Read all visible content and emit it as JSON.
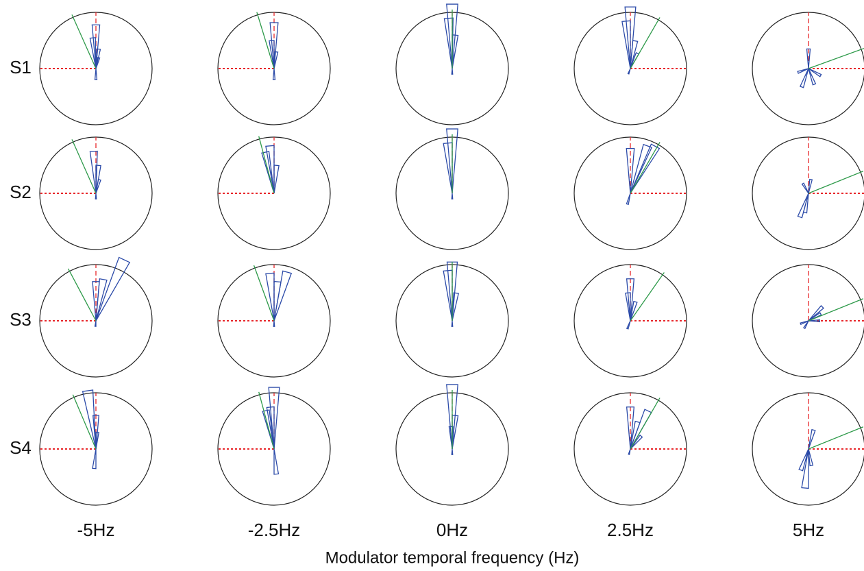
{
  "chart_data": {
    "type": "polar-rose-grid",
    "x_label": "Modulator temporal frequency (Hz)",
    "rows": [
      "S1",
      "S2",
      "S3",
      "S4"
    ],
    "columns": [
      "-5Hz",
      "-2.5Hz",
      "0Hz",
      "2.5Hz",
      "5Hz"
    ],
    "reference_side": [
      "left",
      "left",
      "none",
      "right",
      "right"
    ],
    "petal_color": "#2b4aa8",
    "mean_color": "#2e9a4a",
    "reference_color": "#e8262a",
    "panels": [
      [
        {
          "mean_angle": -24,
          "petal_angles": [
            0,
            -6,
            8,
            15,
            180
          ],
          "petal_lengths": [
            0.78,
            0.55,
            0.35,
            0.2,
            0.2
          ]
        },
        {
          "mean_angle": -17,
          "petal_angles": [
            0,
            -5,
            8,
            180
          ],
          "petal_lengths": [
            0.82,
            0.5,
            0.3,
            0.2
          ]
        },
        {
          "mean_angle": 0,
          "petal_angles": [
            0,
            -4,
            5,
            180
          ],
          "petal_lengths": [
            1.15,
            0.9,
            0.6,
            0.1
          ]
        },
        {
          "mean_angle": 30,
          "petal_angles": [
            0,
            -5,
            10,
            25,
            200
          ],
          "petal_lengths": [
            1.1,
            0.85,
            0.5,
            0.3,
            0.1
          ]
        },
        {
          "mean_angle": 70,
          "petal_angles": [
            0,
            120,
            200,
            250,
            160
          ],
          "petal_lengths": [
            0.35,
            0.25,
            0.35,
            0.2,
            0.3
          ]
        }
      ],
      [
        {
          "mean_angle": -24,
          "petal_angles": [
            -3,
            5,
            15,
            180
          ],
          "petal_lengths": [
            0.75,
            0.5,
            0.25,
            0.1
          ]
        },
        {
          "mean_angle": -15,
          "petal_angles": [
            -5,
            -12,
            5
          ],
          "petal_lengths": [
            0.85,
            0.75,
            0.5
          ]
        },
        {
          "mean_angle": 0,
          "petal_angles": [
            0,
            -5,
            180
          ],
          "petal_lengths": [
            1.15,
            0.9,
            0.1
          ]
        },
        {
          "mean_angle": 30,
          "petal_angles": [
            0,
            20,
            28,
            195
          ],
          "petal_lengths": [
            0.8,
            0.9,
            0.95,
            0.2
          ]
        },
        {
          "mean_angle": 68,
          "petal_angles": [
            10,
            200,
            190,
            -30
          ],
          "petal_lengths": [
            0.25,
            0.45,
            0.35,
            0.2
          ]
        }
      ],
      [
        {
          "mean_angle": -28,
          "petal_angles": [
            25,
            10,
            0,
            185
          ],
          "petal_lengths": [
            1.2,
            0.75,
            0.7,
            0.1
          ]
        },
        {
          "mean_angle": -20,
          "petal_angles": [
            -5,
            5,
            15,
            180
          ],
          "petal_lengths": [
            0.85,
            0.7,
            0.9,
            0.1
          ]
        },
        {
          "mean_angle": 0,
          "petal_angles": [
            0,
            -5,
            8,
            180
          ],
          "petal_lengths": [
            1.05,
            0.9,
            0.5,
            0.1
          ]
        },
        {
          "mean_angle": 35,
          "petal_angles": [
            0,
            -5,
            15,
            200
          ],
          "petal_lengths": [
            0.75,
            0.5,
            0.35,
            0.15
          ]
        },
        {
          "mean_angle": 68,
          "petal_angles": [
            45,
            60,
            90,
            250,
            210
          ],
          "petal_lengths": [
            0.35,
            0.25,
            0.2,
            0.15,
            0.15
          ]
        }
      ],
      [
        {
          "mean_angle": -23,
          "petal_angles": [
            -8,
            0,
            5,
            185
          ],
          "petal_lengths": [
            1.05,
            0.6,
            0.3,
            0.35
          ]
        },
        {
          "mean_angle": -15,
          "petal_angles": [
            0,
            -5,
            -12,
            175
          ],
          "petal_lengths": [
            1.1,
            0.75,
            0.7,
            0.45
          ]
        },
        {
          "mean_angle": 0,
          "petal_angles": [
            0,
            5,
            -3,
            180
          ],
          "petal_lengths": [
            1.15,
            0.6,
            0.4,
            0.1
          ]
        },
        {
          "mean_angle": 30,
          "petal_angles": [
            0,
            15,
            25,
            40,
            195
          ],
          "petal_lengths": [
            0.75,
            0.5,
            0.75,
            0.3,
            0.1
          ]
        },
        {
          "mean_angle": 68,
          "petal_angles": [
            15,
            185,
            200,
            170
          ],
          "petal_lengths": [
            0.35,
            0.7,
            0.4,
            0.3
          ]
        }
      ]
    ]
  }
}
